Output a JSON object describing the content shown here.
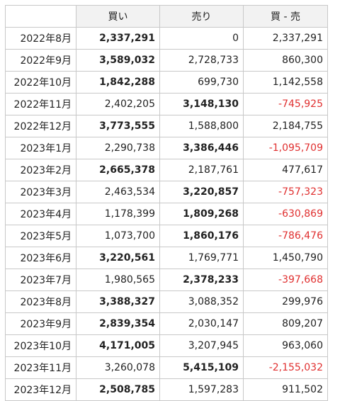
{
  "headers": {
    "corner": "",
    "buy": "買い",
    "sell": "売り",
    "diff": "買 - 売"
  },
  "rows": [
    {
      "month": "2022年8月",
      "buy": "2,337,291",
      "sell": "0",
      "diff": "2,337,291",
      "bold": "buy",
      "negative": false
    },
    {
      "month": "2022年9月",
      "buy": "3,589,032",
      "sell": "2,728,733",
      "diff": "860,300",
      "bold": "buy",
      "negative": false
    },
    {
      "month": "2022年10月",
      "buy": "1,842,288",
      "sell": "699,730",
      "diff": "1,142,558",
      "bold": "buy",
      "negative": false
    },
    {
      "month": "2022年11月",
      "buy": "2,402,205",
      "sell": "3,148,130",
      "diff": "-745,925",
      "bold": "sell",
      "negative": true
    },
    {
      "month": "2022年12月",
      "buy": "3,773,555",
      "sell": "1,588,800",
      "diff": "2,184,755",
      "bold": "buy",
      "negative": false
    },
    {
      "month": "2023年1月",
      "buy": "2,290,738",
      "sell": "3,386,446",
      "diff": "-1,095,709",
      "bold": "sell",
      "negative": true
    },
    {
      "month": "2023年2月",
      "buy": "2,665,378",
      "sell": "2,187,761",
      "diff": "477,617",
      "bold": "buy",
      "negative": false
    },
    {
      "month": "2023年3月",
      "buy": "2,463,534",
      "sell": "3,220,857",
      "diff": "-757,323",
      "bold": "sell",
      "negative": true
    },
    {
      "month": "2023年4月",
      "buy": "1,178,399",
      "sell": "1,809,268",
      "diff": "-630,869",
      "bold": "sell",
      "negative": true
    },
    {
      "month": "2023年5月",
      "buy": "1,073,700",
      "sell": "1,860,176",
      "diff": "-786,476",
      "bold": "sell",
      "negative": true
    },
    {
      "month": "2023年6月",
      "buy": "3,220,561",
      "sell": "1,769,771",
      "diff": "1,450,790",
      "bold": "buy",
      "negative": false
    },
    {
      "month": "2023年7月",
      "buy": "1,980,565",
      "sell": "2,378,233",
      "diff": "-397,668",
      "bold": "sell",
      "negative": true
    },
    {
      "month": "2023年8月",
      "buy": "3,388,327",
      "sell": "3,088,352",
      "diff": "299,976",
      "bold": "buy",
      "negative": false
    },
    {
      "month": "2023年9月",
      "buy": "2,839,354",
      "sell": "2,030,147",
      "diff": "809,207",
      "bold": "buy",
      "negative": false
    },
    {
      "month": "2023年10月",
      "buy": "4,171,005",
      "sell": "3,207,945",
      "diff": "963,060",
      "bold": "buy",
      "negative": false
    },
    {
      "month": "2023年11月",
      "buy": "3,260,078",
      "sell": "5,415,109",
      "diff": "-2,155,032",
      "bold": "sell",
      "negative": true
    },
    {
      "month": "2023年12月",
      "buy": "2,508,785",
      "sell": "1,597,283",
      "diff": "911,502",
      "bold": "buy",
      "negative": false
    }
  ],
  "colors": {
    "negative": "#e03030",
    "header_bg": "#f2f2f2",
    "border": "#c8c8c8"
  }
}
